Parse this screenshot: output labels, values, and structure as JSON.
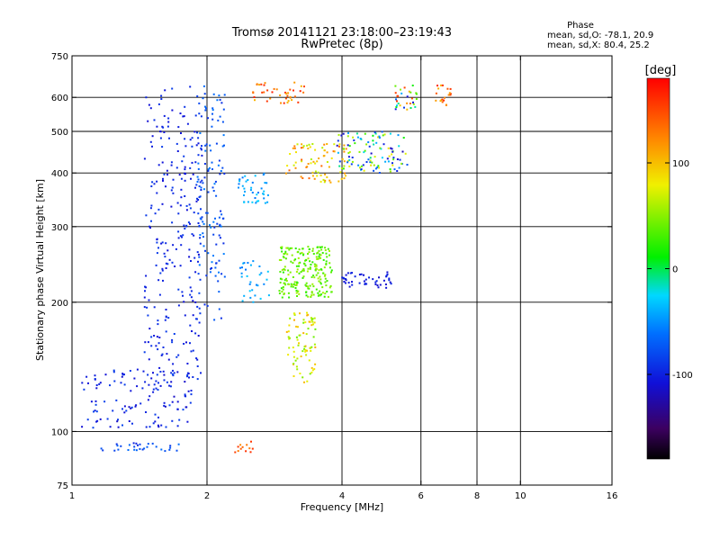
{
  "chart_data": {
    "type": "scatter",
    "title": "Tromsø 20141121 23:18:00–23:19:43",
    "subtitle": "RwPretec (8p)",
    "xlabel": "Frequency [MHz]",
    "ylabel": "Stationary phase Virtual Height [km]",
    "x_scale": "log",
    "y_scale": "log",
    "xlim": [
      1,
      16
    ],
    "ylim": [
      75,
      750
    ],
    "x_ticks": [
      "1",
      "2",
      "4",
      "6",
      "8",
      "10",
      "16"
    ],
    "y_ticks": [
      "75",
      "100",
      "200",
      "300",
      "400",
      "500",
      "600",
      "750"
    ],
    "x_grid_lines": [
      2,
      4,
      6,
      8,
      10
    ],
    "y_grid_lines": [
      100,
      200,
      300,
      400,
      500,
      600
    ],
    "grid": true,
    "stats": {
      "title": "Phase",
      "line_o": "mean, sd,O: -78.1, 20.9",
      "line_x": "mean, sd,X:  80.4, 25.2"
    },
    "colorbar": {
      "label": "[deg]",
      "range": [
        -180,
        180
      ],
      "ticks": [
        "100",
        "0",
        "-100"
      ],
      "tick_values": [
        100,
        0,
        -100
      ],
      "colormap": "rainbow"
    },
    "clusters": [
      {
        "x_range": [
          1.45,
          1.95
        ],
        "h_range": [
          130,
          640
        ],
        "phase_range": [
          -110,
          -85
        ],
        "count": 260
      },
      {
        "x_range": [
          1.9,
          2.2
        ],
        "h_range": [
          180,
          640
        ],
        "phase_range": [
          -95,
          -55
        ],
        "count": 130
      },
      {
        "x_range": [
          2.35,
          2.75
        ],
        "h_range": [
          340,
          400
        ],
        "phase_range": [
          -60,
          -25
        ],
        "count": 40
      },
      {
        "x_range": [
          2.35,
          2.75
        ],
        "h_range": [
          200,
          250
        ],
        "phase_range": [
          -60,
          -30
        ],
        "count": 30
      },
      {
        "x_range": [
          1.05,
          1.85
        ],
        "h_range": [
          102,
          140
        ],
        "phase_range": [
          -115,
          -80
        ],
        "count": 120
      },
      {
        "x_range": [
          2.9,
          3.8
        ],
        "h_range": [
          205,
          270
        ],
        "phase_range": [
          20,
          60
        ],
        "count": 220
      },
      {
        "x_range": [
          3.0,
          3.5
        ],
        "h_range": [
          130,
          190
        ],
        "phase_range": [
          40,
          110
        ],
        "count": 80
      },
      {
        "x_range": [
          3.0,
          4.1
        ],
        "h_range": [
          380,
          470
        ],
        "phase_range": [
          60,
          140
        ],
        "count": 80
      },
      {
        "x_range": [
          3.9,
          5.6
        ],
        "h_range": [
          400,
          500
        ],
        "phase_range": [
          -125,
          90
        ],
        "count": 110
      },
      {
        "x_range": [
          4.0,
          5.2
        ],
        "h_range": [
          215,
          235
        ],
        "phase_range": [
          -115,
          -95
        ],
        "count": 45
      },
      {
        "x_range": [
          5.2,
          5.9
        ],
        "h_range": [
          560,
          640
        ],
        "phase_range": [
          -125,
          160
        ],
        "count": 30
      },
      {
        "x_range": [
          6.4,
          7.0
        ],
        "h_range": [
          575,
          640
        ],
        "phase_range": [
          100,
          170
        ],
        "count": 20
      },
      {
        "x_range": [
          2.5,
          3.3
        ],
        "h_range": [
          580,
          650
        ],
        "phase_range": [
          100,
          170
        ],
        "count": 40
      },
      {
        "x_range": [
          1.15,
          1.75
        ],
        "h_range": [
          90,
          94
        ],
        "phase_range": [
          -100,
          -60
        ],
        "count": 30
      },
      {
        "x_range": [
          2.3,
          2.55
        ],
        "h_range": [
          89,
          95
        ],
        "phase_range": [
          120,
          160
        ],
        "count": 12
      }
    ]
  }
}
